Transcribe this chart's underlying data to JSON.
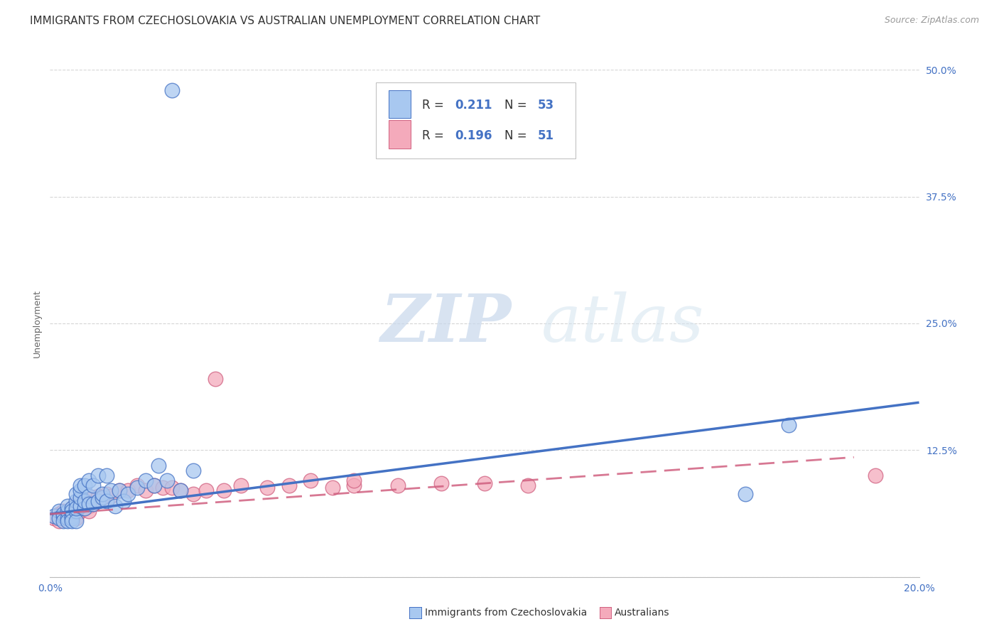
{
  "title": "IMMIGRANTS FROM CZECHOSLOVAKIA VS AUSTRALIAN UNEMPLOYMENT CORRELATION CHART",
  "source": "Source: ZipAtlas.com",
  "ylabel": "Unemployment",
  "xlim": [
    0.0,
    0.2
  ],
  "ylim": [
    0.0,
    0.5
  ],
  "xticks": [
    0.0,
    0.05,
    0.1,
    0.15,
    0.2
  ],
  "xtick_labels": [
    "0.0%",
    "",
    "",
    "",
    "20.0%"
  ],
  "ytick_labels": [
    "",
    "12.5%",
    "25.0%",
    "37.5%",
    "50.0%"
  ],
  "yticks": [
    0.0,
    0.125,
    0.25,
    0.375,
    0.5
  ],
  "watermark_zip": "ZIP",
  "watermark_atlas": "atlas",
  "legend_r1": "0.211",
  "legend_n1": "53",
  "legend_r2": "0.196",
  "legend_n2": "51",
  "color_blue": "#A8C8F0",
  "color_pink": "#F4AABB",
  "color_blue_line": "#4472C4",
  "color_pink_line": "#D06080",
  "color_title": "#333333",
  "color_axis_labels": "#4472C4",
  "blue_scatter_x": [
    0.001,
    0.002,
    0.002,
    0.003,
    0.003,
    0.003,
    0.004,
    0.004,
    0.004,
    0.004,
    0.005,
    0.005,
    0.005,
    0.005,
    0.005,
    0.006,
    0.006,
    0.006,
    0.006,
    0.006,
    0.007,
    0.007,
    0.007,
    0.007,
    0.008,
    0.008,
    0.008,
    0.009,
    0.009,
    0.009,
    0.01,
    0.01,
    0.011,
    0.011,
    0.012,
    0.012,
    0.013,
    0.013,
    0.014,
    0.015,
    0.016,
    0.017,
    0.018,
    0.02,
    0.022,
    0.024,
    0.025,
    0.027,
    0.03,
    0.033,
    0.16,
    0.17,
    0.028
  ],
  "blue_scatter_y": [
    0.06,
    0.065,
    0.058,
    0.06,
    0.062,
    0.055,
    0.058,
    0.065,
    0.07,
    0.055,
    0.06,
    0.068,
    0.058,
    0.065,
    0.055,
    0.065,
    0.075,
    0.082,
    0.055,
    0.068,
    0.07,
    0.078,
    0.085,
    0.09,
    0.068,
    0.075,
    0.09,
    0.08,
    0.072,
    0.095,
    0.072,
    0.09,
    0.075,
    0.1,
    0.078,
    0.082,
    0.075,
    0.1,
    0.085,
    0.07,
    0.085,
    0.075,
    0.082,
    0.088,
    0.095,
    0.09,
    0.11,
    0.095,
    0.085,
    0.105,
    0.082,
    0.15,
    0.48
  ],
  "pink_scatter_x": [
    0.001,
    0.002,
    0.002,
    0.003,
    0.003,
    0.003,
    0.004,
    0.004,
    0.005,
    0.005,
    0.005,
    0.006,
    0.006,
    0.006,
    0.007,
    0.007,
    0.007,
    0.008,
    0.008,
    0.009,
    0.009,
    0.01,
    0.01,
    0.011,
    0.012,
    0.013,
    0.014,
    0.016,
    0.018,
    0.02,
    0.022,
    0.024,
    0.026,
    0.028,
    0.03,
    0.033,
    0.036,
    0.04,
    0.044,
    0.05,
    0.055,
    0.06,
    0.065,
    0.07,
    0.08,
    0.09,
    0.1,
    0.11,
    0.038,
    0.07,
    0.19
  ],
  "pink_scatter_y": [
    0.058,
    0.062,
    0.055,
    0.06,
    0.065,
    0.058,
    0.062,
    0.058,
    0.065,
    0.06,
    0.068,
    0.072,
    0.065,
    0.058,
    0.065,
    0.07,
    0.072,
    0.068,
    0.075,
    0.07,
    0.065,
    0.072,
    0.078,
    0.08,
    0.078,
    0.082,
    0.08,
    0.085,
    0.085,
    0.09,
    0.085,
    0.09,
    0.088,
    0.088,
    0.085,
    0.082,
    0.085,
    0.085,
    0.09,
    0.088,
    0.09,
    0.095,
    0.088,
    0.09,
    0.09,
    0.092,
    0.092,
    0.09,
    0.195,
    0.095,
    0.1
  ],
  "blue_line_x": [
    0.0,
    0.2
  ],
  "blue_line_y_start": 0.062,
  "blue_line_y_end": 0.172,
  "pink_line_x": [
    0.0,
    0.185
  ],
  "pink_line_y_start": 0.062,
  "pink_line_y_end": 0.118,
  "background_color": "#FFFFFF",
  "grid_color": "#CCCCCC",
  "title_fontsize": 11,
  "label_fontsize": 9,
  "tick_fontsize": 10
}
